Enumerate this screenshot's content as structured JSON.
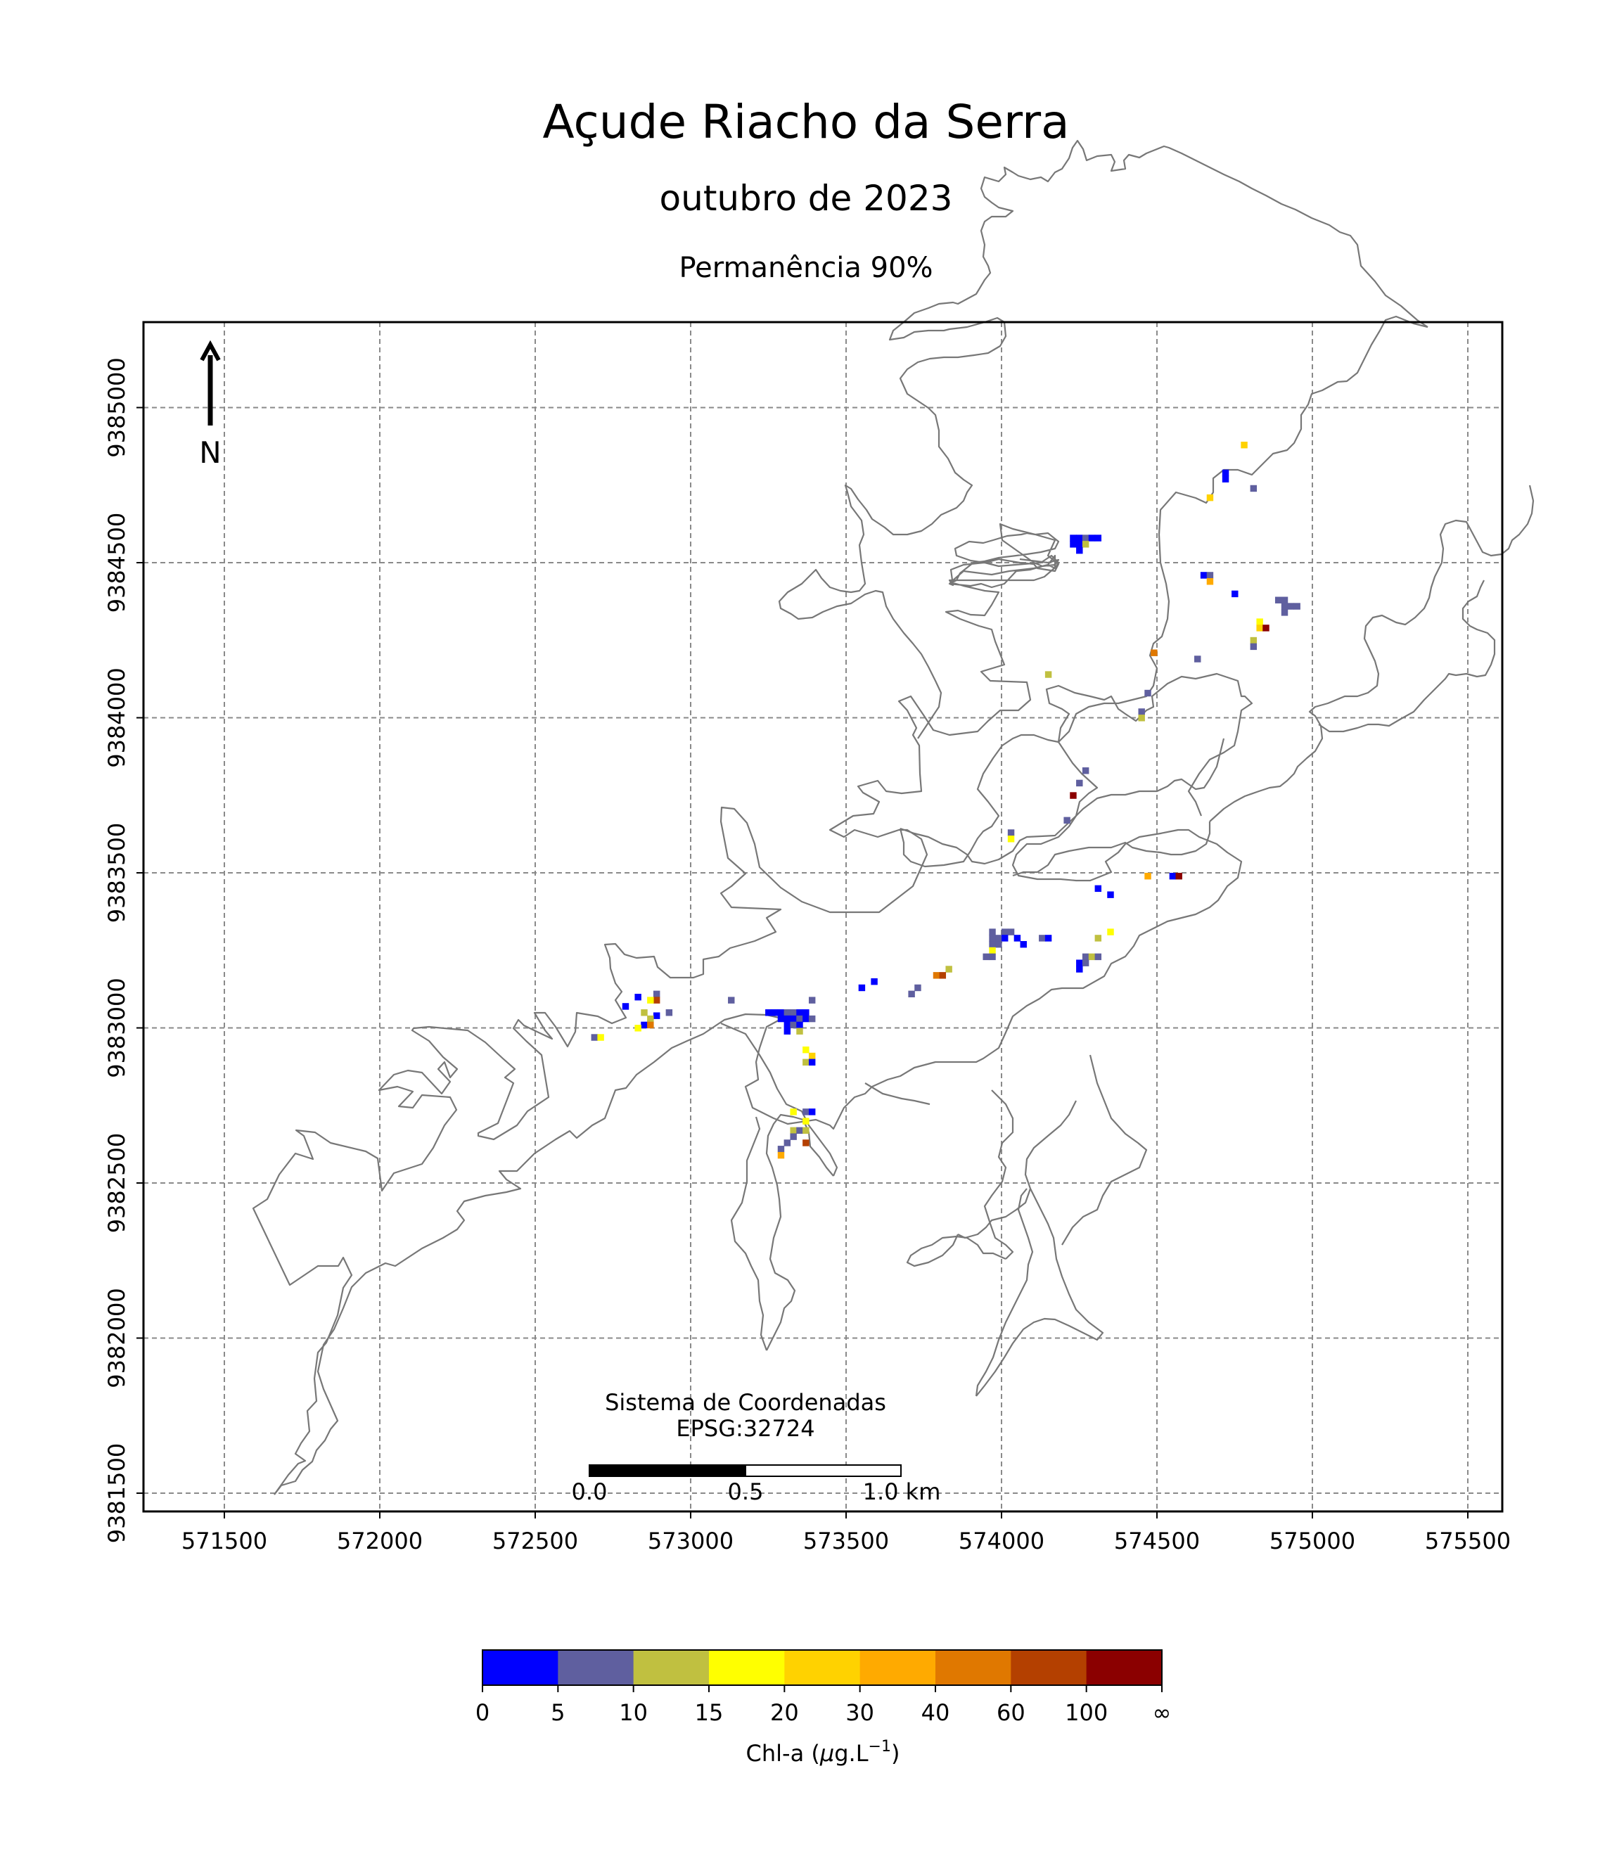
{
  "header": {
    "title": "Açude Riacho da Serra",
    "subtitle": "outubro de 2023",
    "subtitle2": "Permanência 90%"
  },
  "map": {
    "x_ticks": [
      "571500",
      "572000",
      "572500",
      "573000",
      "573500",
      "574000",
      "574500",
      "575000",
      "575500"
    ],
    "y_ticks": [
      "9381500",
      "9382000",
      "9382500",
      "9383000",
      "9383500",
      "9384000",
      "9384500",
      "9385000"
    ],
    "north_label": "N",
    "crs_label_1": "Sistema de Coordenadas",
    "crs_label_2": "EPSG:32724",
    "scale_labels": [
      "0.0",
      "0.5",
      "1.0 km"
    ]
  },
  "colorbar": {
    "colors": [
      "#0000ff",
      "#5f5f9f",
      "#c0c040",
      "#ffff00",
      "#ffd200",
      "#ffaa00",
      "#e07800",
      "#b44000",
      "#8b0000"
    ],
    "tick_labels": [
      "0",
      "5",
      "10",
      "15",
      "20",
      "30",
      "40",
      "60",
      "100",
      "∞"
    ],
    "label_prefix": "Chl-a (",
    "label_mu": "μ",
    "label_unit": "g.L",
    "label_exp": "−1",
    "label_suffix": ")"
  },
  "pixels": [
    [
      574720,
      9384790,
      0
    ],
    [
      574720,
      9384770,
      0
    ],
    [
      574780,
      9384880,
      4
    ],
    [
      574670,
      9384710,
      4
    ],
    [
      574810,
      9384740,
      1
    ],
    [
      574230,
      9384580,
      0
    ],
    [
      574250,
      9384580,
      0
    ],
    [
      574270,
      9384580,
      1
    ],
    [
      574290,
      9384580,
      0
    ],
    [
      574310,
      9384580,
      0
    ],
    [
      574230,
      9384560,
      0
    ],
    [
      574250,
      9384560,
      0
    ],
    [
      574270,
      9384560,
      2
    ],
    [
      574250,
      9384540,
      0
    ],
    [
      574650,
      9384460,
      0
    ],
    [
      574670,
      9384460,
      1
    ],
    [
      574670,
      9384440,
      5
    ],
    [
      574750,
      9384400,
      0
    ],
    [
      574890,
      9384380,
      1
    ],
    [
      574910,
      9384380,
      1
    ],
    [
      574910,
      9384360,
      1
    ],
    [
      574930,
      9384360,
      1
    ],
    [
      574950,
      9384360,
      1
    ],
    [
      574910,
      9384340,
      1
    ],
    [
      574830,
      9384310,
      3
    ],
    [
      574830,
      9384290,
      4
    ],
    [
      574850,
      9384290,
      8
    ],
    [
      574810,
      9384250,
      2
    ],
    [
      574810,
      9384230,
      1
    ],
    [
      574490,
      9384210,
      6
    ],
    [
      574630,
      9384190,
      1
    ],
    [
      574150,
      9384140,
      2
    ],
    [
      574470,
      9384080,
      1
    ],
    [
      574450,
      9384020,
      1
    ],
    [
      574450,
      9384000,
      2
    ],
    [
      574270,
      9383830,
      1
    ],
    [
      574250,
      9383790,
      1
    ],
    [
      574230,
      9383750,
      8
    ],
    [
      574210,
      9383670,
      1
    ],
    [
      574030,
      9383630,
      1
    ],
    [
      574030,
      9383610,
      3
    ],
    [
      574470,
      9383490,
      5
    ],
    [
      574550,
      9383490,
      0
    ],
    [
      574570,
      9383490,
      8
    ],
    [
      574310,
      9383450,
      0
    ],
    [
      574350,
      9383430,
      0
    ],
    [
      574350,
      9383310,
      3
    ],
    [
      573970,
      9383310,
      1
    ],
    [
      574010,
      9383310,
      1
    ],
    [
      574030,
      9383310,
      1
    ],
    [
      573970,
      9383290,
      1
    ],
    [
      573990,
      9383290,
      1
    ],
    [
      574010,
      9383290,
      0
    ],
    [
      574050,
      9383290,
      0
    ],
    [
      574130,
      9383290,
      1
    ],
    [
      574150,
      9383290,
      0
    ],
    [
      573970,
      9383270,
      1
    ],
    [
      573990,
      9383270,
      1
    ],
    [
      574070,
      9383270,
      0
    ],
    [
      573970,
      9383250,
      3
    ],
    [
      573950,
      9383230,
      1
    ],
    [
      573970,
      9383230,
      1
    ],
    [
      574310,
      9383290,
      2
    ],
    [
      574270,
      9383230,
      1
    ],
    [
      574290,
      9383230,
      2
    ],
    [
      574310,
      9383230,
      1
    ],
    [
      574250,
      9383210,
      0
    ],
    [
      574270,
      9383210,
      1
    ],
    [
      574250,
      9383190,
      0
    ],
    [
      573830,
      9383190,
      2
    ],
    [
      573790,
      9383170,
      6
    ],
    [
      573810,
      9383170,
      7
    ],
    [
      573730,
      9383130,
      1
    ],
    [
      573710,
      9383110,
      1
    ],
    [
      573590,
      9383150,
      0
    ],
    [
      573550,
      9383130,
      0
    ],
    [
      573390,
      9383090,
      1
    ],
    [
      573130,
      9383090,
      1
    ],
    [
      572890,
      9383110,
      1
    ],
    [
      572890,
      9383090,
      7
    ],
    [
      572830,
      9383100,
      0
    ],
    [
      572870,
      9383090,
      3
    ],
    [
      572790,
      9383070,
      0
    ],
    [
      572850,
      9383050,
      2
    ],
    [
      572890,
      9383040,
      0
    ],
    [
      572930,
      9383050,
      1
    ],
    [
      572870,
      9383030,
      2
    ],
    [
      572850,
      9383010,
      0
    ],
    [
      572870,
      9383010,
      6
    ],
    [
      572830,
      9383000,
      3
    ],
    [
      572690,
      9382970,
      1
    ],
    [
      572710,
      9382970,
      3
    ],
    [
      573250,
      9383050,
      0
    ],
    [
      573270,
      9383050,
      0
    ],
    [
      573290,
      9383050,
      0
    ],
    [
      573310,
      9383050,
      1
    ],
    [
      573330,
      9383050,
      1
    ],
    [
      573350,
      9383050,
      0
    ],
    [
      573370,
      9383050,
      0
    ],
    [
      573290,
      9383030,
      0
    ],
    [
      573310,
      9383030,
      0
    ],
    [
      573330,
      9383030,
      0
    ],
    [
      573350,
      9383030,
      1
    ],
    [
      573370,
      9383030,
      0
    ],
    [
      573390,
      9383030,
      1
    ],
    [
      573310,
      9383010,
      0
    ],
    [
      573330,
      9383010,
      1
    ],
    [
      573350,
      9383010,
      0
    ],
    [
      573310,
      9382990,
      0
    ],
    [
      573350,
      9382990,
      2
    ],
    [
      573370,
      9382930,
      3
    ],
    [
      573390,
      9382910,
      4
    ],
    [
      573370,
      9382890,
      2
    ],
    [
      573390,
      9382890,
      0
    ],
    [
      573330,
      9382730,
      3
    ],
    [
      573370,
      9382730,
      1
    ],
    [
      573390,
      9382730,
      0
    ],
    [
      573370,
      9382700,
      3
    ],
    [
      573330,
      9382670,
      2
    ],
    [
      573350,
      9382670,
      1
    ],
    [
      573370,
      9382670,
      2
    ],
    [
      573330,
      9382650,
      1
    ],
    [
      573310,
      9382630,
      1
    ],
    [
      573370,
      9382630,
      7
    ],
    [
      573290,
      9382610,
      1
    ],
    [
      573290,
      9382590,
      5
    ]
  ]
}
